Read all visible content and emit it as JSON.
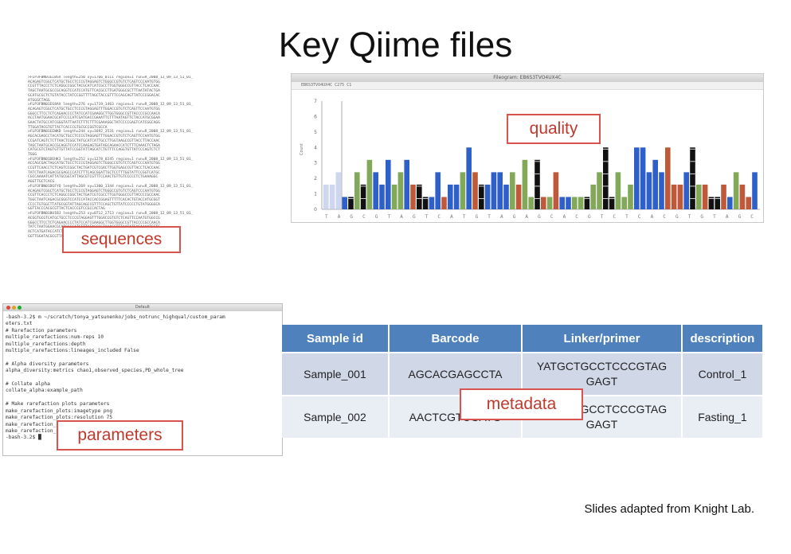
{
  "title": "Key Qiime files",
  "labels": {
    "sequences": "sequences",
    "quality": "quality",
    "parameters": "parameters",
    "metadata": "metadata"
  },
  "credit": "Slides adapted from Knight Lab.",
  "chromatogram": {
    "window_title": "Fileogram: EB6S3TVO4UX4C",
    "toolbar_text": "EB6S3TVO4UX4C  C275 C1",
    "y_axis_title": "Count",
    "y_ticks": [
      "7",
      "6",
      "5",
      "4",
      "3",
      "2",
      "1",
      "0"
    ],
    "bases": [
      "T",
      "A",
      "G",
      "C",
      "G",
      "T",
      "A",
      "G",
      "T",
      "C",
      "A",
      "T",
      "G",
      "T",
      "A",
      "G",
      "A",
      "G",
      "C",
      "A",
      "C",
      "G",
      "T",
      "C",
      "T",
      "C",
      "A",
      "C",
      "G",
      "T",
      "G",
      "T",
      "A",
      "G",
      "C"
    ],
    "colors": {
      "A": "#82a85a",
      "C": "#2f60c9",
      "G": "#111111",
      "T": "#c0583a"
    }
  },
  "sequences_text": [
    ">FLP3FBN01ELBSX length=250 xy=1766_0111 region=1 run=R_2008_12_09_13_51_01_",
    "ACAGAGTCGGCTCATGCTGCCTCCCGTAGGAGTCTGGGCCGTGTCTCAGTCCCAATGTGG",
    "CCGTTTACCCTCTCAGGCCGGCTACGCATCATCGCCTTGGTGGGCCGTTACCTCACCAAC",
    "TAGCTAATGCGCCGCAGGTCCATCCATGTTCACGCCTTGATGGGCGCTTTAATATACTGA",
    "GCATGCGCTCTGTATACCTATCCGGTTTTAGCTACCGTTTCCAGCAGTTATCCCGGACAC",
    "ATGGGCTAGG",
    ">FLP3FBN01EG8AX length=276 xy=1719_1463 region=1 run=R_2008_12_09_13_51_01_",
    "ACAGAGTCGGCTCATGCTGCCTCCCGTAGGAGTTTGGACCGTGTCTCAGTTCCAATGTGG",
    "GGGCCTTCCTCTCAGAACCCCTATCCATCGAAGGCTTGGTGGGCCGTTACCCCGCCAACA",
    "ACCTAATGGAACGCATCCCCATCGATGACCGAAATTCTTTAATAGTTCTACCATGCGGAA",
    "GAACTATGCCATCGGGTATTAATCTTTCTTTCGAAAGGCTATCCCCGAGTCATCGGCAGG",
    "TTGGATACGTGTTACTCACCCGTGCGCCGGTCGCCA",
    ">FLP3FBN01EEWKD length=244 xy=1692_3531 region=1 run=R_2008_12_09_13_51_01_",
    "AGCACGAGCCTACATGCTGCCTCCCGTAGGAGTTTGGACCGTGTCTCAGTTCCAATGTGG",
    "CCGATCAGTCTCTTAACTCGGCTATGCATCATTGCCTTGGTAAGCCGTTACCTTACCAAC",
    "TAGCTAATGCACCGCAGGTCCATCCAAGAGTGATAGCAGAACCATCTTTCAAACTCTAGA",
    "CATGCGTCTAGTGTTGTTATCCGGTATTAGCATCTGTTTCCAGGTGTTATCCCAGTCTCT",
    "TGGG",
    ">FLP3FBN01DEHK3 length=252 xy=1278_0245 region=1 run=R_2008_12_09_13_51_01_",
    "ACCAGCGACTAGCATGCTGCCTCCCGTAGGAGTCTGGGCCGTGTCTCAGTCCCAATGTGG",
    "CCGTTCAACCTCTCAGTCCGGCTACTGATCGTCGACTTGGTGAGCCGTTACCTCACCAAC",
    "TATCTAATCAGACGCGAGCCCATCTTTCAGCGGATTGCTCCTTTGGTATTCCGGTCATGC",
    "CGCCAAAATCATTATGCGGTATTAGCGTCGTTTCCAACTGTTGTCCCCCTCTGAAAGGC",
    "AGGTTGCTCACG",
    ">FLP3FBN01DGFYQ length=269 xy=1300_1344 region=1 run=R_2008_12_09_13_51_01_",
    "ACAGAGTCGGCTCATGCTGCCTCCCGTAGGAGTCTGGGCCGTGTCTCAGTCCCAATGTGG",
    "CCGTTCACCCTCTCAGGCCGGCTACTGATCGTCGCCTTGGTGGGCCGTTACCCCGCCAAC",
    "TGGCTAATCAGACGCGGGTCCATCCATACCACCGGAGTTTTTCACACTGTACCATGCGGT",
    "CCCCTGTGGCTTATGCGGTATTAGCAGCCGTTTCCAGCTGTTATCCCCCTGTATGGGGCA",
    "GGTTACCCACGCGTTACTCACCCGTCCGCCACTAG",
    ">FLP3FBN01BU1BJ length=253 xy=0712_2713 region=1 run=R_2008_12_09_13_51_01_",
    "ACGGTGCGTCATGCTGCCTCCCGTAGGAGTTTGGACCGTGTCTCAGTTCCAATGTGGCCG",
    "GGGCCTTCCTCTCAGAACCCCTATCCATCGAAGGCTTGGTGGGCCGTTACCCCGCCAACA",
    "TATCTAATGGAACGCATCCCCATCTTTATACCGGTAAACCTTTAATATGAGAAAATGCTC",
    "ACTCATGATACCATCTTGTATTAATCTCCCTTTCAGAAGGCTATCCAAGAGTATAAGGCA",
    "GGTTGGATACGCGTTACTCACCCGTGCGCCGG"
  ],
  "terminal": {
    "window_title": "Default",
    "lines": [
      "-bash-3.2$ m ~/scratch/tonya_yatsunenko/jobs_notrunc_highqual/custom_param",
      "eters.txt",
      "# Rarefaction parameters",
      "multiple_rarefactions:num-reps 10",
      "multiple_rarefactions:depth",
      "multiple_rarefactions:lineages_included False",
      "",
      "# Alpha diversity parameters",
      "alpha_diversity:metrics chao1,observed_species,PD_whole_tree",
      "",
      "# Collate alpha",
      "collate_alpha:example_path",
      "",
      "# Make rarefaction plots parameters",
      "make_rarefaction_plots:imagetype png",
      "make_rarefaction_plots:resolution 75",
      "make_rarefaction_plots:background_color white",
      "make_rarefaction_plots:prefs_path",
      "-bash-3.2$ █"
    ]
  },
  "metadata_table": {
    "headers": [
      "Sample id",
      "Barcode",
      "Linker/primer",
      "description"
    ],
    "rows": [
      {
        "sample_id": "Sample_001",
        "barcode": "AGCACGAGCCTA",
        "linker_primer": "YATGCTGCCTCCCGTAG GAGT",
        "description": "Control_1"
      },
      {
        "sample_id": "Sample_002",
        "barcode": "AACTCGTCGATG",
        "linker_primer": "YATGCTGCCTCCCGTAG GAGT",
        "description": "Fasting_1"
      }
    ]
  }
}
